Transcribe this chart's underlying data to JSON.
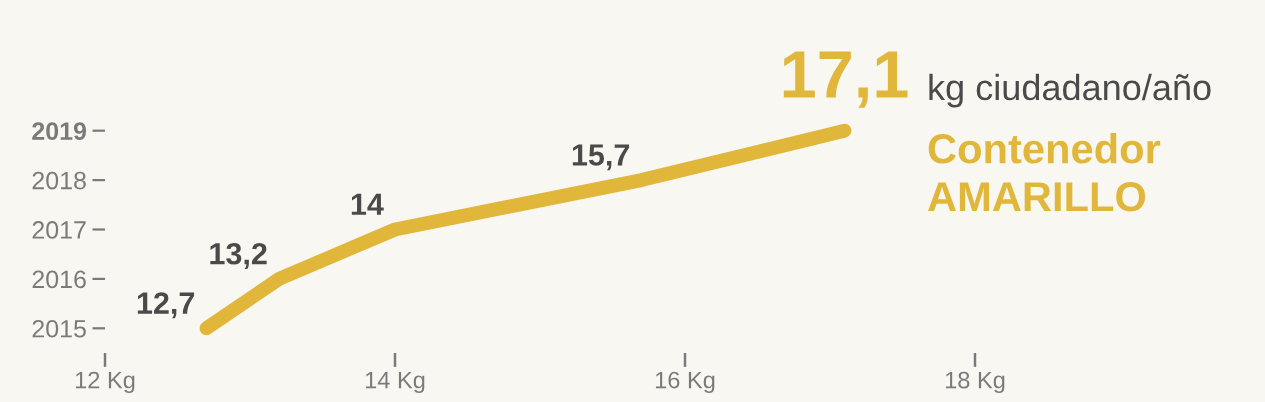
{
  "chart_data": {
    "type": "line",
    "orientation": "horizontal",
    "categories": [
      "2019",
      "2018",
      "2017",
      "2016",
      "2015"
    ],
    "series": [
      {
        "name": "Contenedor AMARILLO",
        "color": "#e0b73b",
        "values": [
          17.1,
          15.7,
          14,
          13.2,
          12.7
        ],
        "value_labels": [
          "17,1",
          "15,7",
          "14",
          "13,2",
          "12,7"
        ]
      }
    ],
    "xlim": [
      12,
      18
    ],
    "xticks": [
      {
        "value": 12,
        "label": "12 Kg"
      },
      {
        "value": 14,
        "label": "14 Kg"
      },
      {
        "value": 16,
        "label": "16 Kg"
      },
      {
        "value": 18,
        "label": "18 Kg"
      }
    ],
    "annotations": [
      "kg ciudadano/año"
    ]
  }
}
